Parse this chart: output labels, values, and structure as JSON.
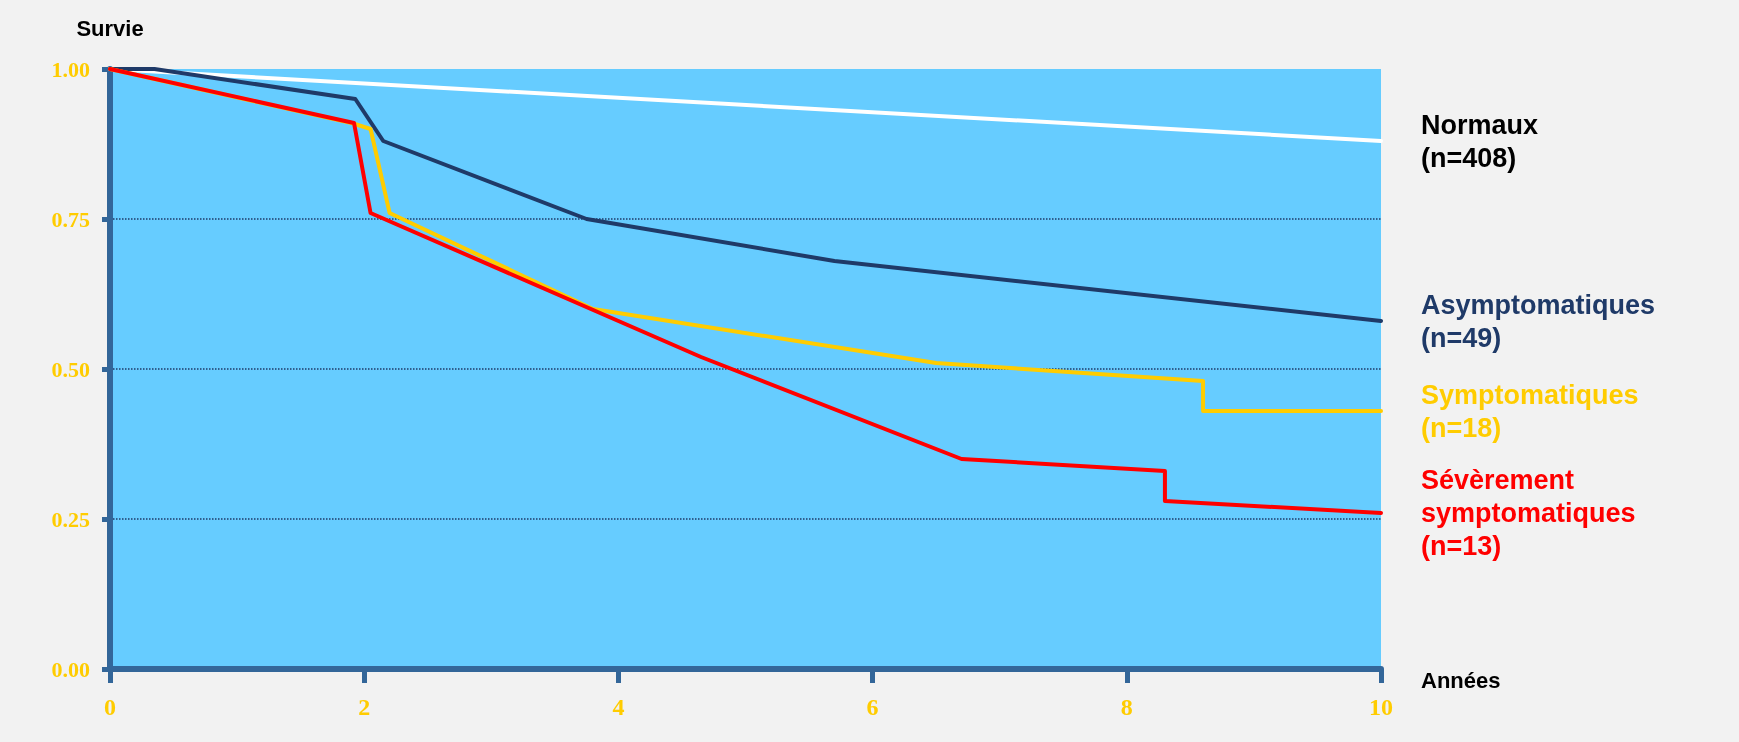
{
  "chart_data": {
    "type": "line",
    "xlabel": "Années",
    "ylabel": "Survie",
    "xlim": [
      0,
      10
    ],
    "xticks": [
      0,
      2,
      4,
      6,
      8,
      10
    ],
    "ylim": [
      0,
      1
    ],
    "yticks": [
      {
        "value": 0,
        "label": "0.00"
      },
      {
        "value": 0.25,
        "label": "0.25"
      },
      {
        "value": 0.5,
        "label": "0.50"
      },
      {
        "value": 0.75,
        "label": "0.75"
      },
      {
        "value": 1,
        "label": "1.00"
      }
    ],
    "grid": "y",
    "legend": false,
    "marker": "none",
    "line_style": "solid",
    "series": [
      {
        "name": "Normaux (n=408)",
        "color": "#ffffff",
        "x": [
          0,
          10
        ],
        "values": [
          1,
          0.88
        ]
      },
      {
        "name": "Asymptomatiques (n=49)",
        "color": "#1f3a68",
        "x": [
          0,
          0.35,
          1.93,
          2.15,
          3.75,
          5.7,
          10
        ],
        "values": [
          1,
          1,
          0.95,
          0.88,
          0.75,
          0.68,
          0.58
        ]
      },
      {
        "name": "Symptomatiques (n=18)",
        "color": "#ffcc00",
        "x": [
          0,
          1.9,
          2.05,
          2.2,
          3.8,
          6.5,
          8.6,
          8.6,
          10
        ],
        "values": [
          1,
          0.91,
          0.9,
          0.76,
          0.6,
          0.51,
          0.48,
          0.43,
          0.43
        ]
      },
      {
        "name": "Sévèrement symptomatiques (n=13)",
        "color": "#ff0000",
        "x": [
          0,
          1.92,
          2.05,
          4.65,
          6.7,
          8.3,
          8.3,
          10
        ],
        "values": [
          1,
          0.91,
          0.76,
          0.52,
          0.35,
          0.33,
          0.28,
          0.26
        ]
      }
    ]
  }
}
